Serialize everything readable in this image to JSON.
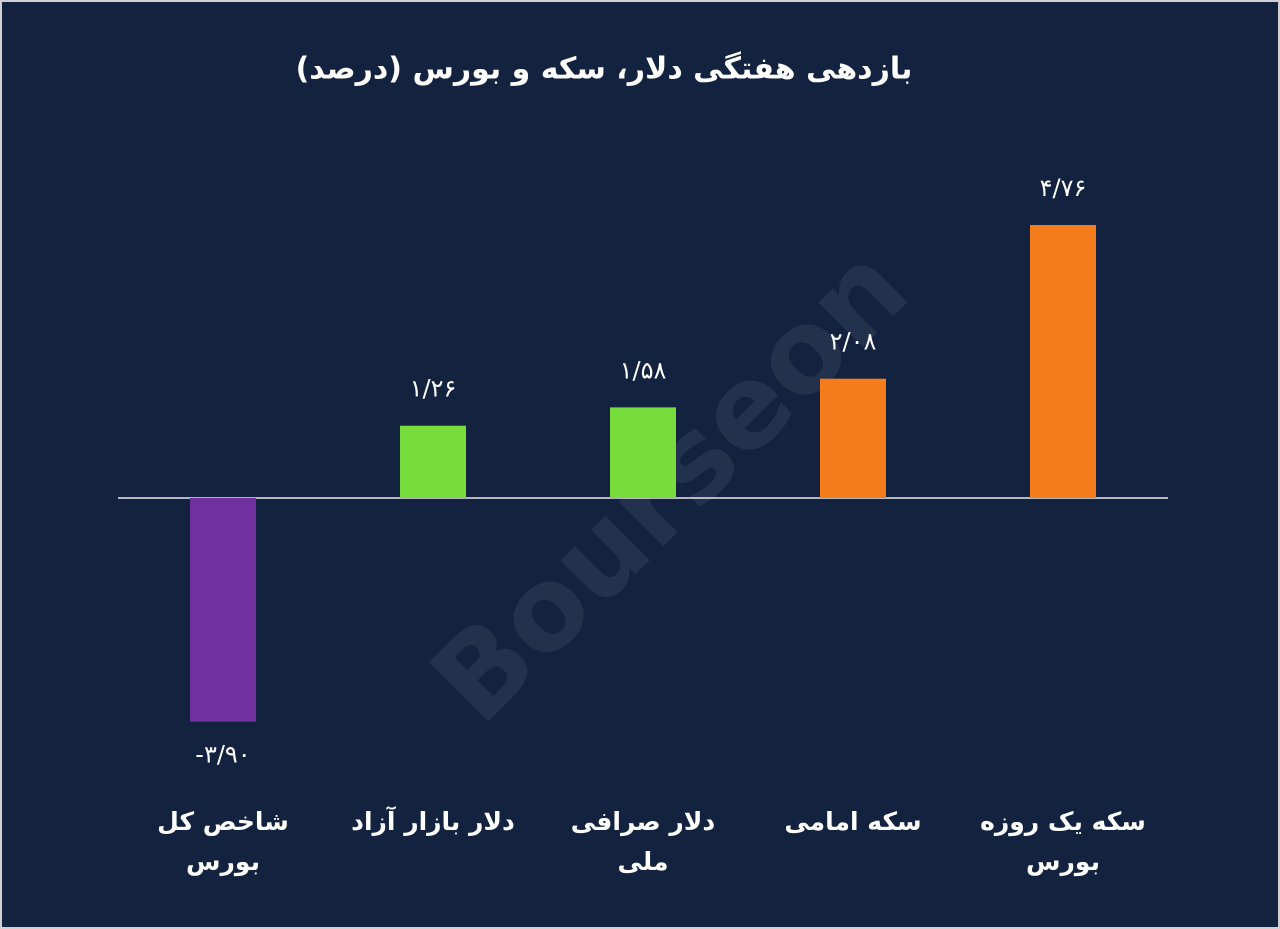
{
  "chart_data": {
    "type": "bar",
    "title": "بازدهی هفتگی دلار، سکه و بورس (درصد)",
    "watermark": "Bourseon",
    "categories": [
      "شاخص کل بورس",
      "دلار بازار آزاد",
      "دلار صرافی ملی",
      "سکه امامی",
      "سکه یک روزه بورس"
    ],
    "values": [
      -3.9,
      1.26,
      1.58,
      2.08,
      4.76
    ],
    "value_labels": [
      "-۳/۹۰",
      "۱/۲۶",
      "۱/۵۸",
      "۲/۰۸",
      "۴/۷۶"
    ],
    "colors": [
      "#7030a0",
      "#76dd3c",
      "#76dd3c",
      "#f47c1a",
      "#f47c1a"
    ]
  }
}
